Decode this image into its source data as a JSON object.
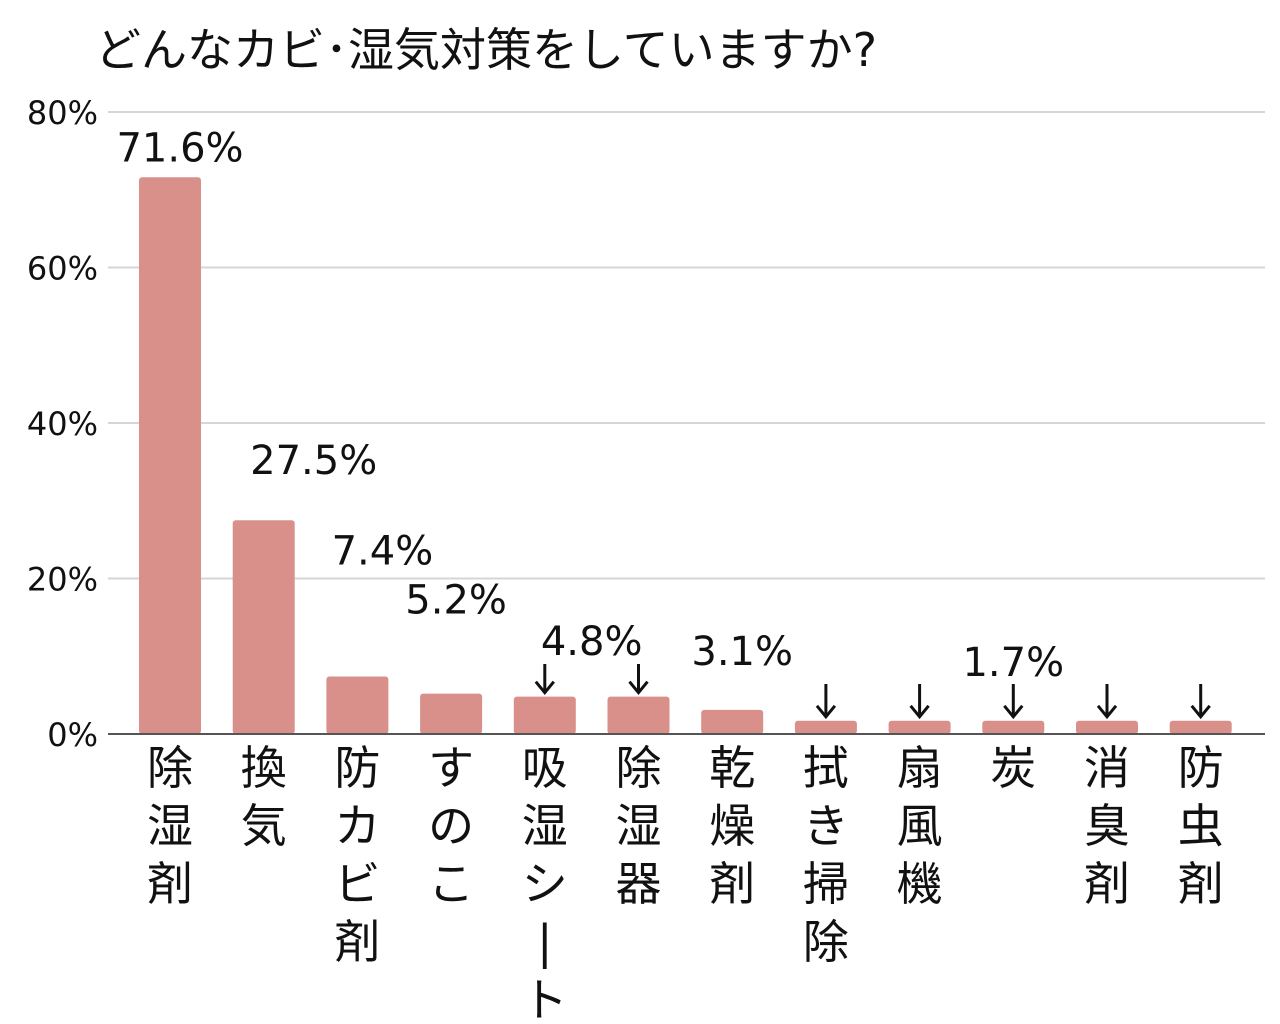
{
  "chart_data": {
    "type": "bar",
    "title": "どんなカビ･湿気対策をしていますか?",
    "xlabel": "",
    "ylabel": "",
    "ylim": [
      0,
      80
    ],
    "yticks": [
      0,
      20,
      40,
      60,
      80
    ],
    "ytick_labels": [
      "0%",
      "20%",
      "40%",
      "60%",
      "80%"
    ],
    "grid": true,
    "bar_color": "#d9908b",
    "categories": [
      "除湿剤",
      "換気",
      "防カビ剤",
      "すのこ",
      "吸湿シート",
      "除湿器",
      "乾燥剤",
      "拭き掃除",
      "扇風機",
      "炭",
      "消臭剤",
      "防虫剤"
    ],
    "values": [
      71.6,
      27.5,
      7.4,
      5.2,
      4.8,
      4.8,
      3.1,
      1.7,
      1.7,
      1.7,
      1.7,
      1.7
    ],
    "data_labels": [
      {
        "text": "71.6%",
        "bars": [
          0
        ]
      },
      {
        "text": "27.5%",
        "bars": [
          1
        ]
      },
      {
        "text": "7.4%",
        "bars": [
          2
        ]
      },
      {
        "text": "5.2%",
        "bars": [
          3
        ]
      },
      {
        "text": "4.8%",
        "bars": [
          4,
          5
        ]
      },
      {
        "text": "3.1%",
        "bars": [
          6
        ]
      },
      {
        "text": "1.7%",
        "bars": [
          7,
          8,
          9,
          10,
          11
        ]
      }
    ]
  }
}
